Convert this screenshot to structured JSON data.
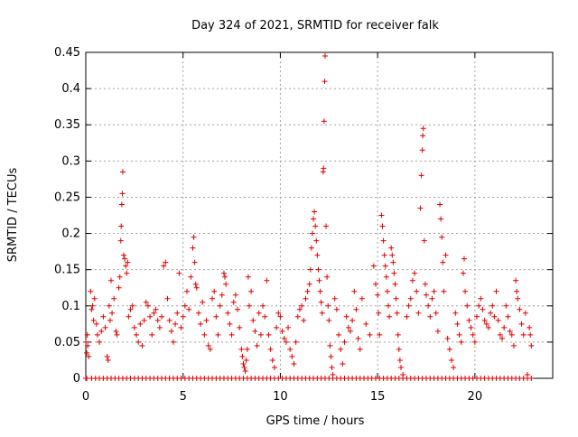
{
  "chart_data": {
    "type": "scatter",
    "title": "Day 324 of 2021, SRMTID for receiver falk",
    "xlabel": "GPS time / hours",
    "ylabel": "SRMTID / TECUs",
    "xlim": [
      0,
      24
    ],
    "ylim": [
      0,
      0.45
    ],
    "x_ticks": [
      0,
      5,
      10,
      15,
      20
    ],
    "y_ticks": [
      0,
      0.05,
      0.1,
      0.15,
      0.2,
      0.25,
      0.3,
      0.35,
      0.4,
      0.45
    ],
    "x_tick_labels": [
      "0",
      "5",
      "10",
      "15",
      "20"
    ],
    "y_tick_labels": [
      "0",
      "0.05",
      "0.1",
      "0.15",
      "0.2",
      "0.25",
      "0.3",
      "0.35",
      "0.4",
      "0.45"
    ],
    "grid": true,
    "legend": "none",
    "marker": "+",
    "color": "#dd0000",
    "zero_line_x": [
      0.0,
      0.05,
      0.3,
      0.5,
      0.7,
      0.9,
      1.1,
      1.3,
      1.5,
      1.7,
      1.9,
      2.1,
      2.3,
      2.5,
      2.7,
      2.9,
      3.1,
      3.3,
      3.5,
      3.7,
      3.9,
      4.1,
      4.3,
      4.5,
      4.7,
      4.9,
      5.1,
      5.3,
      5.5,
      5.7,
      5.9,
      6.1,
      6.3,
      6.5,
      6.7,
      6.9,
      7.1,
      7.3,
      7.5,
      7.7,
      7.9,
      8.1,
      8.3,
      8.5,
      8.7,
      8.9,
      9.1,
      9.3,
      9.5,
      9.7,
      9.9,
      10.1,
      10.3,
      10.5,
      10.7,
      10.9,
      11.1,
      11.3,
      11.5,
      11.7,
      11.9,
      12.1,
      12.3,
      12.5,
      12.7,
      12.9,
      13.1,
      13.3,
      13.5,
      13.7,
      13.9,
      14.1,
      14.3,
      14.5,
      14.7,
      14.9,
      15.1,
      15.3,
      15.5,
      15.7,
      15.9,
      16.1,
      16.3,
      16.5,
      16.7,
      16.9,
      17.1,
      17.3,
      17.5,
      17.7,
      17.9,
      18.1,
      18.3,
      18.5,
      18.7,
      18.9,
      19.1,
      19.3,
      19.5,
      19.7,
      19.9,
      20.1,
      20.3,
      20.5,
      20.7,
      20.9,
      21.1,
      21.3,
      21.5,
      21.7,
      21.9,
      22.1,
      22.3,
      22.5,
      22.7,
      22.9
    ],
    "points": [
      [
        0.0,
        0.05
      ],
      [
        0.05,
        0.035
      ],
      [
        0.08,
        0.06
      ],
      [
        0.1,
        0.045
      ],
      [
        0.15,
        0.03
      ],
      [
        0.25,
        0.12
      ],
      [
        0.3,
        0.095
      ],
      [
        0.35,
        0.1
      ],
      [
        0.4,
        0.08
      ],
      [
        0.45,
        0.11
      ],
      [
        0.55,
        0.075
      ],
      [
        0.6,
        0.06
      ],
      [
        0.7,
        0.05
      ],
      [
        0.8,
        0.065
      ],
      [
        0.9,
        0.085
      ],
      [
        1.0,
        0.07
      ],
      [
        1.1,
        0.03
      ],
      [
        1.15,
        0.025
      ],
      [
        1.2,
        0.1
      ],
      [
        1.25,
        0.08
      ],
      [
        1.3,
        0.135
      ],
      [
        1.35,
        0.09
      ],
      [
        1.45,
        0.11
      ],
      [
        1.55,
        0.065
      ],
      [
        1.6,
        0.06
      ],
      [
        1.7,
        0.125
      ],
      [
        1.75,
        0.14
      ],
      [
        1.8,
        0.19
      ],
      [
        1.82,
        0.21
      ],
      [
        1.85,
        0.24
      ],
      [
        1.88,
        0.255
      ],
      [
        1.9,
        0.285
      ],
      [
        1.95,
        0.17
      ],
      [
        2.0,
        0.165
      ],
      [
        2.05,
        0.155
      ],
      [
        2.1,
        0.145
      ],
      [
        2.15,
        0.16
      ],
      [
        2.2,
        0.085
      ],
      [
        2.3,
        0.095
      ],
      [
        2.4,
        0.1
      ],
      [
        2.5,
        0.07
      ],
      [
        2.6,
        0.06
      ],
      [
        2.7,
        0.05
      ],
      [
        2.8,
        0.075
      ],
      [
        2.9,
        0.045
      ],
      [
        3.0,
        0.08
      ],
      [
        3.1,
        0.105
      ],
      [
        3.2,
        0.1
      ],
      [
        3.3,
        0.085
      ],
      [
        3.4,
        0.06
      ],
      [
        3.5,
        0.09
      ],
      [
        3.6,
        0.095
      ],
      [
        3.7,
        0.08
      ],
      [
        3.8,
        0.07
      ],
      [
        3.9,
        0.085
      ],
      [
        4.0,
        0.155
      ],
      [
        4.1,
        0.16
      ],
      [
        4.2,
        0.11
      ],
      [
        4.3,
        0.08
      ],
      [
        4.4,
        0.065
      ],
      [
        4.5,
        0.05
      ],
      [
        4.6,
        0.075
      ],
      [
        4.7,
        0.09
      ],
      [
        4.8,
        0.145
      ],
      [
        4.9,
        0.07
      ],
      [
        5.0,
        0.085
      ],
      [
        5.1,
        0.1
      ],
      [
        5.2,
        0.12
      ],
      [
        5.3,
        0.095
      ],
      [
        5.4,
        0.14
      ],
      [
        5.5,
        0.18
      ],
      [
        5.55,
        0.195
      ],
      [
        5.6,
        0.16
      ],
      [
        5.65,
        0.13
      ],
      [
        5.7,
        0.125
      ],
      [
        5.8,
        0.09
      ],
      [
        5.9,
        0.075
      ],
      [
        6.0,
        0.105
      ],
      [
        6.1,
        0.06
      ],
      [
        6.2,
        0.08
      ],
      [
        6.3,
        0.045
      ],
      [
        6.4,
        0.04
      ],
      [
        6.5,
        0.11
      ],
      [
        6.6,
        0.12
      ],
      [
        6.7,
        0.085
      ],
      [
        6.8,
        0.06
      ],
      [
        6.9,
        0.1
      ],
      [
        7.0,
        0.115
      ],
      [
        7.1,
        0.145
      ],
      [
        7.15,
        0.14
      ],
      [
        7.2,
        0.13
      ],
      [
        7.3,
        0.09
      ],
      [
        7.4,
        0.075
      ],
      [
        7.5,
        0.06
      ],
      [
        7.6,
        0.105
      ],
      [
        7.7,
        0.115
      ],
      [
        7.8,
        0.095
      ],
      [
        7.9,
        0.07
      ],
      [
        8.0,
        0.04
      ],
      [
        8.05,
        0.03
      ],
      [
        8.1,
        0.02
      ],
      [
        8.15,
        0.015
      ],
      [
        8.2,
        0.01
      ],
      [
        8.25,
        0.025
      ],
      [
        8.3,
        0.04
      ],
      [
        8.35,
        0.14
      ],
      [
        8.4,
        0.1
      ],
      [
        8.5,
        0.12
      ],
      [
        8.6,
        0.08
      ],
      [
        8.7,
        0.065
      ],
      [
        8.8,
        0.045
      ],
      [
        8.9,
        0.09
      ],
      [
        9.0,
        0.06
      ],
      [
        9.1,
        0.1
      ],
      [
        9.2,
        0.085
      ],
      [
        9.3,
        0.135
      ],
      [
        9.4,
        0.06
      ],
      [
        9.5,
        0.04
      ],
      [
        9.6,
        0.025
      ],
      [
        9.7,
        0.015
      ],
      [
        9.8,
        0.07
      ],
      [
        9.9,
        0.09
      ],
      [
        10.0,
        0.085
      ],
      [
        10.1,
        0.065
      ],
      [
        10.2,
        0.055
      ],
      [
        10.3,
        0.05
      ],
      [
        10.4,
        0.07
      ],
      [
        10.5,
        0.04
      ],
      [
        10.6,
        0.03
      ],
      [
        10.7,
        0.02
      ],
      [
        10.8,
        0.05
      ],
      [
        10.9,
        0.085
      ],
      [
        11.0,
        0.095
      ],
      [
        11.1,
        0.1
      ],
      [
        11.2,
        0.08
      ],
      [
        11.3,
        0.11
      ],
      [
        11.4,
        0.12
      ],
      [
        11.5,
        0.13
      ],
      [
        11.55,
        0.15
      ],
      [
        11.6,
        0.18
      ],
      [
        11.65,
        0.2
      ],
      [
        11.7,
        0.22
      ],
      [
        11.75,
        0.23
      ],
      [
        11.8,
        0.21
      ],
      [
        11.85,
        0.19
      ],
      [
        11.9,
        0.17
      ],
      [
        11.95,
        0.15
      ],
      [
        12.0,
        0.135
      ],
      [
        12.05,
        0.12
      ],
      [
        12.1,
        0.105
      ],
      [
        12.15,
        0.09
      ],
      [
        12.2,
        0.285
      ],
      [
        12.22,
        0.29
      ],
      [
        12.25,
        0.355
      ],
      [
        12.28,
        0.41
      ],
      [
        12.3,
        0.445
      ],
      [
        12.35,
        0.21
      ],
      [
        12.4,
        0.14
      ],
      [
        12.45,
        0.1
      ],
      [
        12.5,
        0.08
      ],
      [
        12.55,
        0.045
      ],
      [
        12.6,
        0.03
      ],
      [
        12.65,
        0.015
      ],
      [
        12.7,
        0.005
      ],
      [
        12.8,
        0.11
      ],
      [
        12.9,
        0.095
      ],
      [
        13.0,
        0.06
      ],
      [
        13.1,
        0.04
      ],
      [
        13.2,
        0.02
      ],
      [
        13.3,
        0.05
      ],
      [
        13.4,
        0.085
      ],
      [
        13.5,
        0.07
      ],
      [
        13.6,
        0.065
      ],
      [
        13.7,
        0.08
      ],
      [
        13.8,
        0.12
      ],
      [
        13.9,
        0.095
      ],
      [
        14.0,
        0.055
      ],
      [
        14.1,
        0.04
      ],
      [
        14.2,
        0.11
      ],
      [
        14.4,
        0.075
      ],
      [
        14.6,
        0.06
      ],
      [
        14.8,
        0.155
      ],
      [
        14.9,
        0.13
      ],
      [
        15.0,
        0.115
      ],
      [
        15.05,
        0.09
      ],
      [
        15.1,
        0.06
      ],
      [
        15.2,
        0.225
      ],
      [
        15.25,
        0.21
      ],
      [
        15.3,
        0.19
      ],
      [
        15.35,
        0.17
      ],
      [
        15.4,
        0.155
      ],
      [
        15.45,
        0.14
      ],
      [
        15.5,
        0.12
      ],
      [
        15.55,
        0.1
      ],
      [
        15.6,
        0.085
      ],
      [
        15.7,
        0.18
      ],
      [
        15.75,
        0.17
      ],
      [
        15.8,
        0.16
      ],
      [
        15.85,
        0.145
      ],
      [
        15.9,
        0.13
      ],
      [
        15.95,
        0.11
      ],
      [
        16.0,
        0.09
      ],
      [
        16.05,
        0.06
      ],
      [
        16.1,
        0.04
      ],
      [
        16.15,
        0.025
      ],
      [
        16.2,
        0.015
      ],
      [
        16.3,
        0.005
      ],
      [
        16.5,
        0.085
      ],
      [
        16.6,
        0.1
      ],
      [
        16.7,
        0.11
      ],
      [
        16.8,
        0.135
      ],
      [
        16.9,
        0.145
      ],
      [
        17.0,
        0.12
      ],
      [
        17.1,
        0.09
      ],
      [
        17.2,
        0.235
      ],
      [
        17.25,
        0.28
      ],
      [
        17.3,
        0.315
      ],
      [
        17.32,
        0.335
      ],
      [
        17.35,
        0.345
      ],
      [
        17.4,
        0.19
      ],
      [
        17.45,
        0.13
      ],
      [
        17.5,
        0.115
      ],
      [
        17.6,
        0.1
      ],
      [
        17.7,
        0.085
      ],
      [
        17.8,
        0.11
      ],
      [
        17.9,
        0.12
      ],
      [
        18.0,
        0.09
      ],
      [
        18.1,
        0.065
      ],
      [
        18.2,
        0.24
      ],
      [
        18.25,
        0.22
      ],
      [
        18.3,
        0.195
      ],
      [
        18.35,
        0.16
      ],
      [
        18.4,
        0.12
      ],
      [
        18.5,
        0.17
      ],
      [
        18.6,
        0.055
      ],
      [
        18.7,
        0.04
      ],
      [
        18.8,
        0.025
      ],
      [
        18.9,
        0.015
      ],
      [
        19.0,
        0.09
      ],
      [
        19.1,
        0.075
      ],
      [
        19.2,
        0.06
      ],
      [
        19.3,
        0.05
      ],
      [
        19.4,
        0.145
      ],
      [
        19.45,
        0.165
      ],
      [
        19.5,
        0.12
      ],
      [
        19.6,
        0.1
      ],
      [
        19.7,
        0.08
      ],
      [
        19.8,
        0.07
      ],
      [
        19.9,
        0.06
      ],
      [
        20.0,
        0.05
      ],
      [
        20.1,
        0.085
      ],
      [
        20.2,
        0.1
      ],
      [
        20.3,
        0.11
      ],
      [
        20.4,
        0.095
      ],
      [
        20.5,
        0.08
      ],
      [
        20.6,
        0.075
      ],
      [
        20.7,
        0.07
      ],
      [
        20.8,
        0.09
      ],
      [
        20.9,
        0.1
      ],
      [
        21.0,
        0.085
      ],
      [
        21.1,
        0.12
      ],
      [
        21.2,
        0.08
      ],
      [
        21.3,
        0.06
      ],
      [
        21.4,
        0.055
      ],
      [
        21.5,
        0.07
      ],
      [
        21.6,
        0.1
      ],
      [
        21.7,
        0.085
      ],
      [
        21.8,
        0.065
      ],
      [
        21.9,
        0.06
      ],
      [
        22.0,
        0.045
      ],
      [
        22.1,
        0.135
      ],
      [
        22.15,
        0.12
      ],
      [
        22.2,
        0.11
      ],
      [
        22.3,
        0.095
      ],
      [
        22.4,
        0.075
      ],
      [
        22.5,
        0.06
      ],
      [
        22.6,
        0.09
      ],
      [
        22.7,
        0.005
      ],
      [
        22.8,
        0.07
      ],
      [
        22.85,
        0.06
      ],
      [
        22.9,
        0.045
      ]
    ]
  }
}
